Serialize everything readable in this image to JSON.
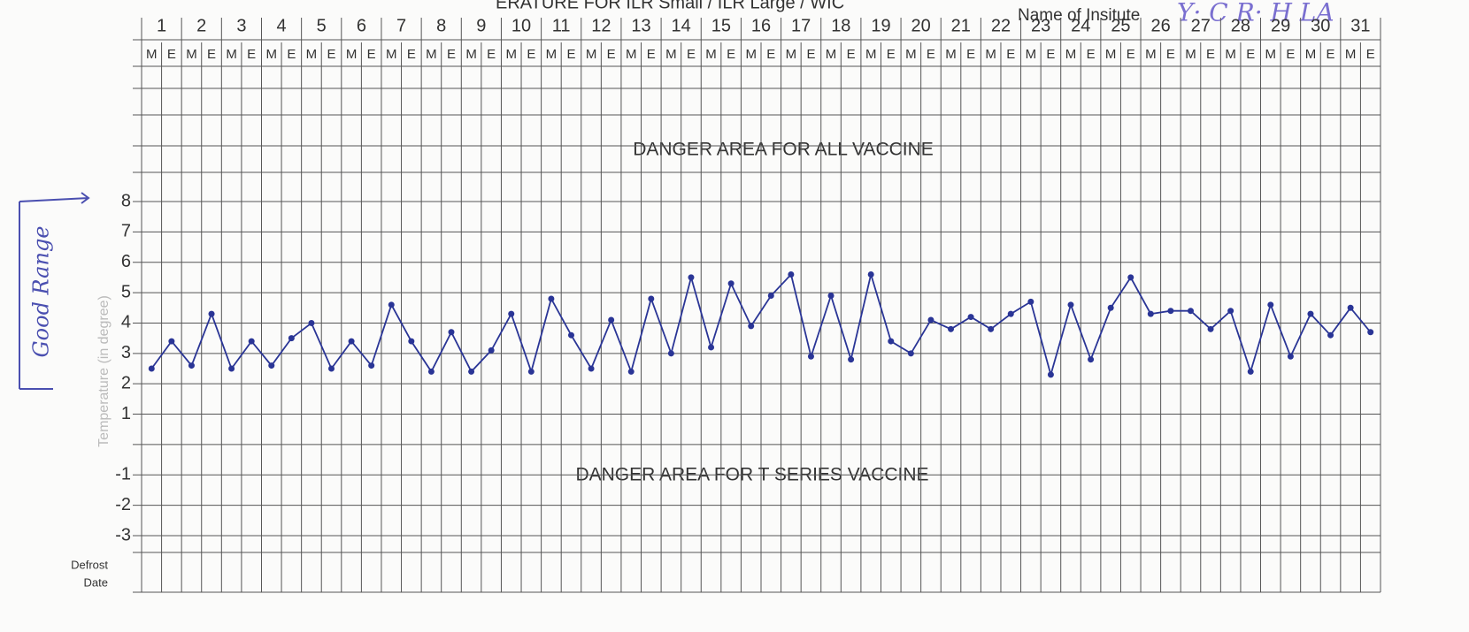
{
  "chart_data": {
    "type": "line",
    "title": "ERATURE FOR ILR Small / ILR Large / WIC",
    "institute_label": "Name of Insitute",
    "institute_name": "Y· C R· H LA",
    "days": [
      1,
      2,
      3,
      4,
      5,
      6,
      7,
      8,
      9,
      10,
      11,
      12,
      13,
      14,
      15,
      16,
      17,
      18,
      19,
      20,
      21,
      22,
      23,
      24,
      25,
      26,
      27,
      28,
      29,
      30,
      31
    ],
    "categories": [
      "M",
      "E",
      "M",
      "E",
      "M",
      "E",
      "M",
      "E",
      "M",
      "E",
      "M",
      "E",
      "M",
      "E",
      "M",
      "E",
      "M",
      "E",
      "M",
      "E",
      "M",
      "E",
      "M",
      "E",
      "M",
      "E",
      "M",
      "E",
      "M",
      "E",
      "M",
      "E",
      "M",
      "E",
      "M",
      "E",
      "M",
      "E",
      "M",
      "E",
      "M",
      "E",
      "M",
      "E",
      "M",
      "E",
      "M",
      "E",
      "M",
      "E",
      "M",
      "E",
      "M",
      "E",
      "M",
      "E",
      "M",
      "E",
      "M",
      "E",
      "M",
      "E"
    ],
    "values": [
      2.5,
      3.4,
      2.6,
      4.3,
      2.5,
      3.4,
      2.6,
      3.5,
      4.0,
      2.5,
      3.4,
      2.6,
      4.6,
      3.4,
      2.4,
      3.7,
      2.4,
      3.1,
      4.3,
      2.4,
      4.8,
      3.6,
      2.5,
      4.1,
      2.4,
      4.8,
      3.0,
      5.5,
      3.2,
      5.3,
      3.9,
      4.9,
      5.6,
      2.9,
      4.9,
      2.8,
      5.6,
      3.4,
      3.0,
      4.1,
      3.8,
      4.2,
      3.8,
      4.3,
      4.7,
      2.3,
      4.6,
      2.8,
      4.5,
      5.5,
      4.3,
      4.4,
      4.4,
      3.8,
      4.4,
      2.4,
      4.6,
      2.9,
      4.3,
      3.6,
      4.5,
      3.7
    ],
    "color": "#2a3596",
    "ylim": [
      -3,
      8
    ],
    "yticks": [
      8,
      7,
      6,
      5,
      4,
      3,
      2,
      1,
      -1,
      -2,
      -3
    ],
    "y_label": "Temperature (in degree)",
    "side_note": "Good Range",
    "annotations": [
      "DANGER AREA FOR ALL VACCINE",
      "DANGER AREA FOR T SERIES VACCINE"
    ],
    "footer_labels": [
      "Defrost",
      "Date"
    ]
  }
}
